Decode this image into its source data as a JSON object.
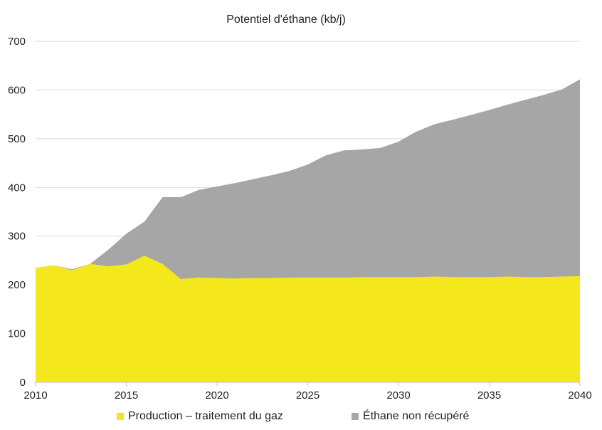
{
  "chart_data": {
    "type": "area",
    "title": "Potentiel d'éthane (kb/j)",
    "xlabel": "",
    "ylabel": "",
    "x": [
      2010,
      2011,
      2012,
      2013,
      2014,
      2015,
      2016,
      2017,
      2018,
      2019,
      2020,
      2021,
      2022,
      2023,
      2024,
      2025,
      2026,
      2027,
      2028,
      2029,
      2030,
      2031,
      2032,
      2033,
      2034,
      2035,
      2036,
      2037,
      2038,
      2039,
      2040
    ],
    "xlim": [
      2010,
      2040
    ],
    "ylim": [
      0,
      700
    ],
    "x_ticks": [
      "2010",
      "2015",
      "2020",
      "2025",
      "2030",
      "2035",
      "2040"
    ],
    "y_ticks": [
      "0",
      "100",
      "200",
      "300",
      "400",
      "500",
      "600",
      "700"
    ],
    "stacked": false,
    "grid": true,
    "legend_position": "bottom",
    "series": [
      {
        "name": "Éthane non récupéré",
        "color": "#a6a6a6",
        "values": [
          235,
          240,
          232,
          243,
          272,
          305,
          330,
          380,
          380,
          395,
          402,
          409,
          417,
          425,
          434,
          447,
          466,
          476,
          478,
          481,
          494,
          515,
          530,
          539,
          549,
          559,
          570,
          580,
          590,
          601,
          622
        ]
      },
      {
        "name": "Production – traitement du gaz",
        "color": "#f4e81c",
        "values": [
          235,
          240,
          230,
          243,
          238,
          242,
          260,
          243,
          212,
          215,
          214,
          213,
          214,
          214,
          215,
          215,
          215,
          215,
          216,
          216,
          216,
          216,
          217,
          216,
          216,
          216,
          217,
          216,
          216,
          217,
          218
        ]
      }
    ],
    "legend": [
      "Production – traitement du gaz",
      "Éthane non récupéré"
    ]
  }
}
